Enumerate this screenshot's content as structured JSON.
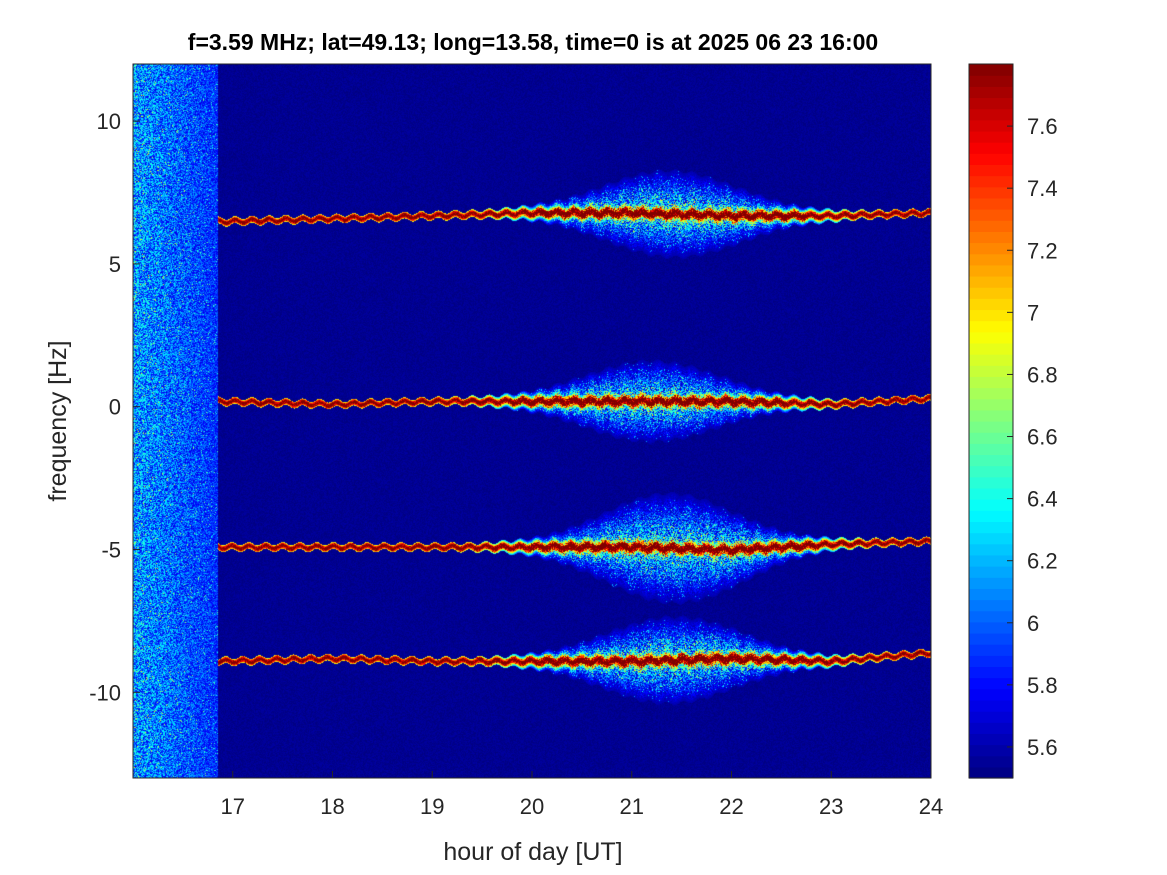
{
  "chart_data": {
    "type": "heatmap",
    "title": "f=3.59 MHz;  lat=49.13; long=13.58, time=0 is at 2025 06 23 16:00",
    "xlabel": "hour of day [UT]",
    "ylabel": "frequency [Hz]",
    "xlim": [
      16,
      24
    ],
    "ylim": [
      -13,
      12
    ],
    "xticks": [
      17,
      18,
      19,
      20,
      21,
      22,
      23,
      24
    ],
    "yticks": [
      -10,
      -5,
      0,
      5,
      10
    ],
    "colorbar": {
      "colormap": "jet",
      "range": [
        5.5,
        7.8
      ],
      "ticks": [
        5.6,
        5.8,
        6,
        6.2,
        6.4,
        6.6,
        6.8,
        7,
        7.2,
        7.4,
        7.6
      ]
    },
    "noise_band_hours": [
      16.0,
      16.85
    ],
    "traces": [
      {
        "center_hz": [
          [
            16.9,
            6.5
          ],
          [
            18,
            6.6
          ],
          [
            19,
            6.7
          ],
          [
            20,
            6.8
          ],
          [
            21,
            6.8
          ],
          [
            22,
            6.7
          ],
          [
            23,
            6.7
          ],
          [
            24,
            6.8
          ]
        ],
        "spread_peak_hz": 1.4,
        "spread_peak_hour": 21.4
      },
      {
        "center_hz": [
          [
            16.9,
            0.2
          ],
          [
            18,
            0.1
          ],
          [
            19,
            0.2
          ],
          [
            20,
            0.2
          ],
          [
            21,
            0.2
          ],
          [
            22,
            0.2
          ],
          [
            23,
            0.1
          ],
          [
            24,
            0.3
          ]
        ],
        "spread_peak_hz": 1.3,
        "spread_peak_hour": 21.2
      },
      {
        "center_hz": [
          [
            16.9,
            -4.9
          ],
          [
            18,
            -4.9
          ],
          [
            19,
            -4.9
          ],
          [
            20,
            -4.9
          ],
          [
            21,
            -4.9
          ],
          [
            22,
            -5.0
          ],
          [
            23,
            -4.8
          ],
          [
            24,
            -4.7
          ]
        ],
        "spread_peak_hz": 1.8,
        "spread_peak_hour": 21.4
      },
      {
        "center_hz": [
          [
            16.9,
            -8.9
          ],
          [
            18,
            -8.8
          ],
          [
            19,
            -8.9
          ],
          [
            20,
            -8.9
          ],
          [
            21,
            -8.9
          ],
          [
            22,
            -8.8
          ],
          [
            23,
            -8.9
          ],
          [
            24,
            -8.6
          ]
        ],
        "spread_peak_hz": 1.4,
        "spread_peak_hour": 21.4
      }
    ]
  }
}
